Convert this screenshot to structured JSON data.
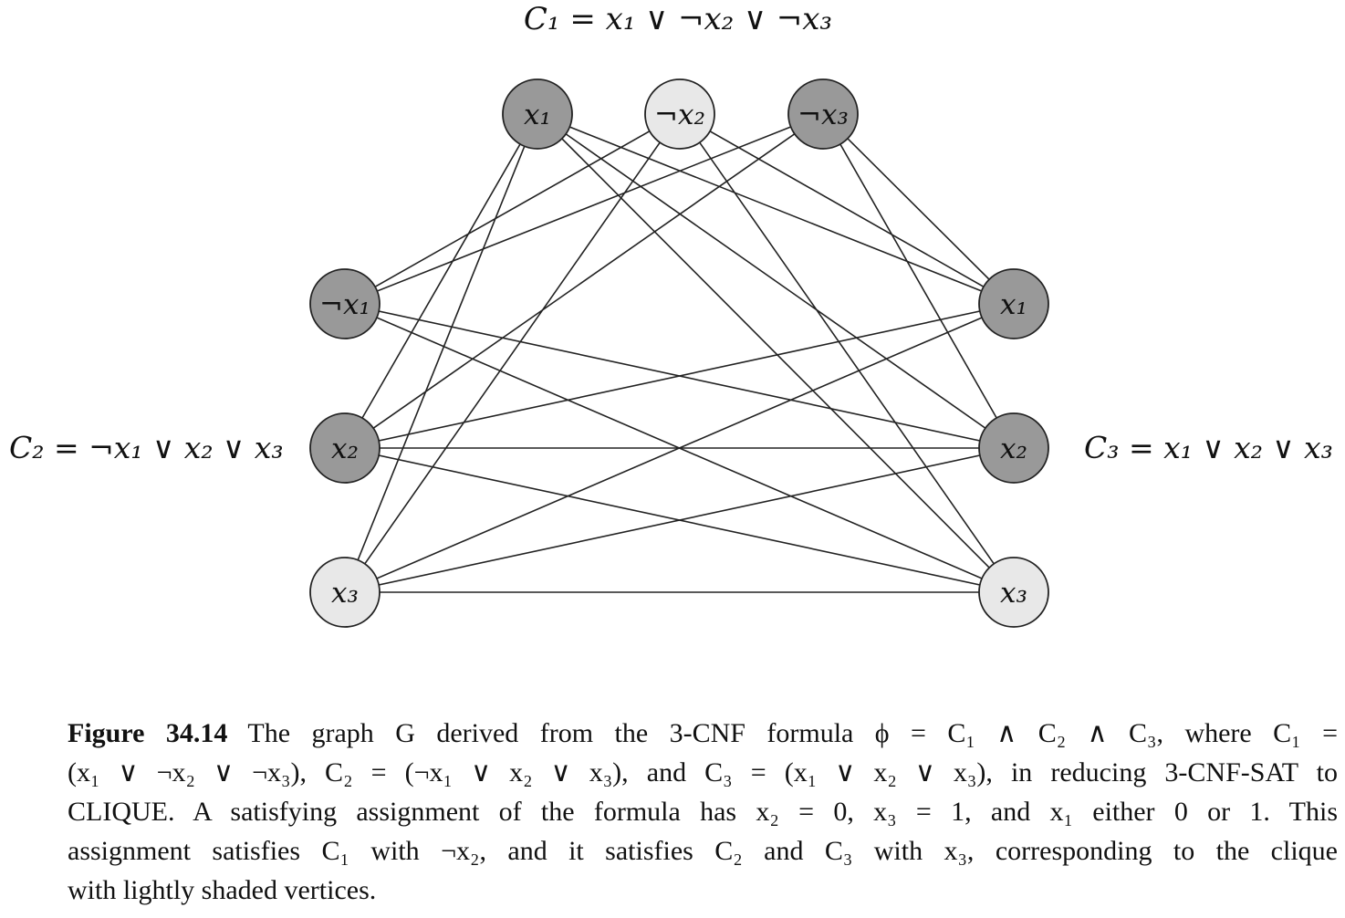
{
  "clause_labels": {
    "c1": "C₁ = x₁ ∨ ¬x₂ ∨ ¬x₃",
    "c2": "C₂ = ¬x₁ ∨ x₂ ∨ x₃",
    "c3": "C₃ = x₁ ∨ x₂ ∨ x₃"
  },
  "colors": {
    "dark_vertex": "#999999",
    "light_vertex": "#e8e8e8",
    "stroke": "#222222"
  },
  "vertices": [
    {
      "id": "c1-x1",
      "label": "x₁",
      "shade": "dark"
    },
    {
      "id": "c1-notx2",
      "label": "¬x₂",
      "shade": "light"
    },
    {
      "id": "c1-notx3",
      "label": "¬x₃",
      "shade": "dark"
    },
    {
      "id": "c2-notx1",
      "label": "¬x₁",
      "shade": "dark"
    },
    {
      "id": "c2-x2",
      "label": "x₂",
      "shade": "dark"
    },
    {
      "id": "c2-x3",
      "label": "x₃",
      "shade": "light"
    },
    {
      "id": "c3-x1",
      "label": "x₁",
      "shade": "dark"
    },
    {
      "id": "c3-x2",
      "label": "x₂",
      "shade": "dark"
    },
    {
      "id": "c3-x3",
      "label": "x₃",
      "shade": "light"
    }
  ],
  "edges": [
    [
      "c1-x1",
      "c2-x2"
    ],
    [
      "c1-x1",
      "c2-x3"
    ],
    [
      "c1-x1",
      "c3-x1"
    ],
    [
      "c1-x1",
      "c3-x2"
    ],
    [
      "c1-x1",
      "c3-x3"
    ],
    [
      "c1-notx2",
      "c2-notx1"
    ],
    [
      "c1-notx2",
      "c2-x3"
    ],
    [
      "c1-notx2",
      "c3-x1"
    ],
    [
      "c1-notx2",
      "c3-x3"
    ],
    [
      "c1-notx3",
      "c2-notx1"
    ],
    [
      "c1-notx3",
      "c2-x2"
    ],
    [
      "c1-notx3",
      "c3-x1"
    ],
    [
      "c1-notx3",
      "c3-x2"
    ],
    [
      "c2-notx1",
      "c3-x2"
    ],
    [
      "c2-notx1",
      "c3-x3"
    ],
    [
      "c2-x2",
      "c3-x1"
    ],
    [
      "c2-x2",
      "c3-x2"
    ],
    [
      "c2-x2",
      "c3-x3"
    ],
    [
      "c2-x3",
      "c3-x1"
    ],
    [
      "c2-x3",
      "c3-x2"
    ],
    [
      "c2-x3",
      "c3-x3"
    ]
  ],
  "caption": {
    "label": "Figure 34.14",
    "lines": [
      "The graph G derived from the 3-CNF formula ϕ = C₁ ∧ C₂ ∧ C₃, where C₁ =",
      "(x₁ ∨ ¬x₂ ∨ ¬x₃), C₂ = (¬x₁ ∨ x₂ ∨ x₃), and C₃ = (x₁ ∨ x₂ ∨ x₃), in reducing 3-CNF-SAT to",
      "CLIQUE. A satisfying assignment of the formula has x₂ = 0, x₃ = 1, and x₁ either 0 or 1. This",
      "assignment satisfies C₁ with ¬x₂, and it satisfies C₂ and C₃ with x₃, corresponding to the clique",
      "with lightly shaded vertices."
    ]
  }
}
